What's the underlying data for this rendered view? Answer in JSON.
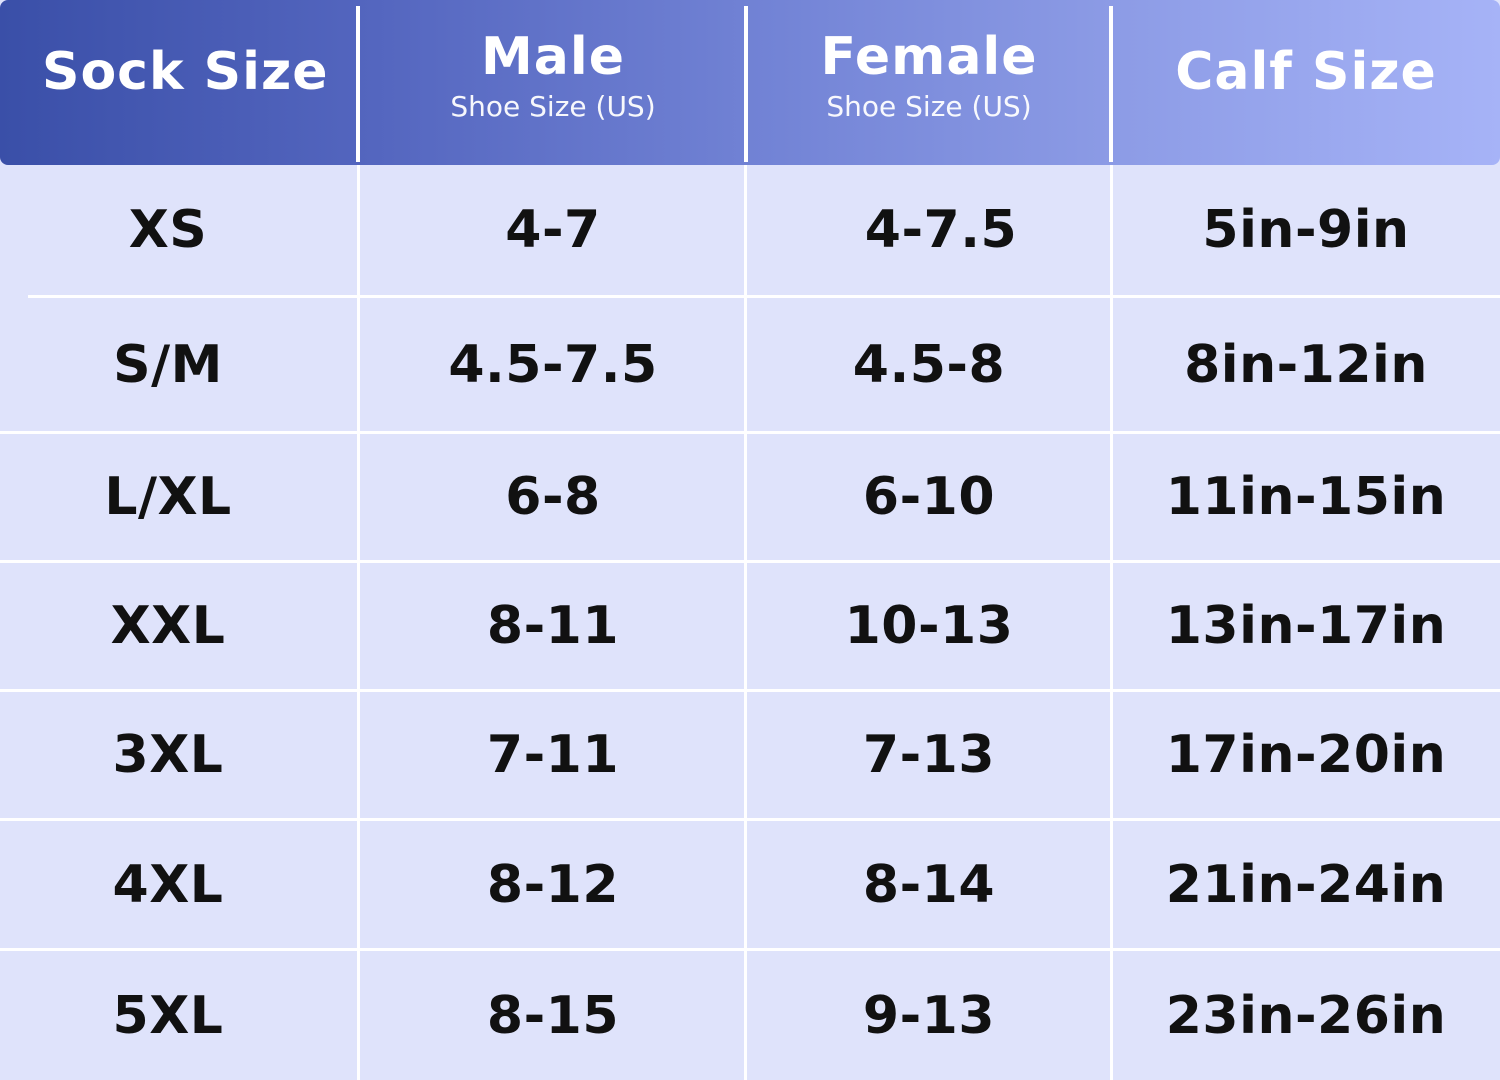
{
  "header": {
    "sock_size": "Sock Size",
    "male": "Male",
    "male_sub": "Shoe Size (US)",
    "female": "Female",
    "female_sub": "Shoe Size (US)",
    "calf_size": "Calf Size"
  },
  "rows": [
    {
      "sock": "XS",
      "male": "4-7",
      "female": "4-7.5",
      "calf": "5in-9in"
    },
    {
      "sock": "S/M",
      "male": "4.5-7.5",
      "female": "4.5-8",
      "calf": "8in-12in"
    },
    {
      "sock": "L/XL",
      "male": "6-8",
      "female": "6-10",
      "calf": "11in-15in"
    },
    {
      "sock": "XXL",
      "male": "8-11",
      "female": "10-13",
      "calf": "13in-17in"
    },
    {
      "sock": "3XL",
      "male": "7-11",
      "female": "7-13",
      "calf": "17in-20in"
    },
    {
      "sock": "4XL",
      "male": "8-12",
      "female": "8-14",
      "calf": "21in-24in"
    },
    {
      "sock": "5XL",
      "male": "8-15",
      "female": "9-13",
      "calf": "23in-26in"
    }
  ],
  "colors": {
    "header_start": "#3a4fa8",
    "header_end": "#a6b3f7",
    "body_bg": "#dfe3fb",
    "text": "#111111"
  }
}
